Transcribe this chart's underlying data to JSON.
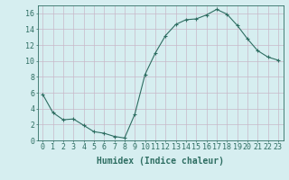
{
  "x": [
    0,
    1,
    2,
    3,
    4,
    5,
    6,
    7,
    8,
    9,
    10,
    11,
    12,
    13,
    14,
    15,
    16,
    17,
    18,
    19,
    20,
    21,
    22,
    23
  ],
  "y": [
    5.8,
    3.5,
    2.6,
    2.7,
    1.9,
    1.1,
    0.9,
    0.5,
    0.3,
    3.3,
    8.3,
    11.0,
    13.2,
    14.6,
    15.2,
    15.3,
    15.8,
    16.5,
    15.9,
    14.5,
    12.8,
    11.3,
    10.5,
    10.1
  ],
  "line_color": "#2e6e62",
  "marker": "P",
  "marker_size": 2.5,
  "bg_color": "#d6eef0",
  "grid_color": "#c8b8c8",
  "xlabel": "Humidex (Indice chaleur)",
  "xlim": [
    -0.5,
    23.5
  ],
  "ylim": [
    0,
    17
  ],
  "yticks": [
    0,
    2,
    4,
    6,
    8,
    10,
    12,
    14,
    16
  ],
  "xtick_labels": [
    "0",
    "1",
    "2",
    "3",
    "4",
    "5",
    "6",
    "7",
    "8",
    "9",
    "10",
    "11",
    "12",
    "13",
    "14",
    "15",
    "16",
    "17",
    "18",
    "19",
    "20",
    "21",
    "22",
    "23"
  ],
  "tick_color": "#2e6e62",
  "label_fontsize": 6,
  "xlabel_fontsize": 7,
  "axis_color": "#2e6e62"
}
